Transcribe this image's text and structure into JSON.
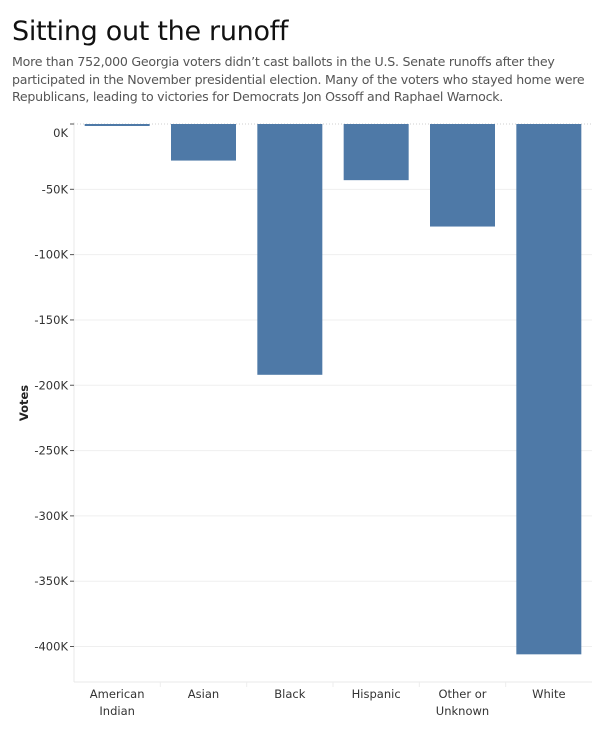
{
  "header": {
    "title": "Sitting out the runoff",
    "subtitle": "More than 752,000 Georgia voters didn’t cast ballots in the U.S. Senate runoffs after they participated in the November presidential election. Many of the voters who stayed home were Republicans, leading to victories for Democrats Jon Ossoff and Raphael Warnock."
  },
  "chart_data": {
    "type": "bar",
    "title": "Sitting out the runoff",
    "xlabel": "",
    "ylabel": "Votes",
    "categories": [
      [
        "American",
        "Indian"
      ],
      [
        "Asian"
      ],
      [
        "Black"
      ],
      [
        "Hispanic"
      ],
      [
        "Other or",
        "Unknown"
      ],
      [
        "White"
      ]
    ],
    "category_names": [
      "American Indian",
      "Asian",
      "Black",
      "Hispanic",
      "Other or Unknown",
      "White"
    ],
    "values": [
      -1500,
      -28000,
      -192000,
      -43000,
      -78500,
      -406000
    ],
    "ylim": [
      -430000,
      0
    ],
    "yticks": [
      0,
      -50000,
      -100000,
      -150000,
      -200000,
      -250000,
      -300000,
      -350000,
      -400000
    ],
    "ytick_labels": [
      "0K",
      "-50K",
      "-100K",
      "-150K",
      "-200K",
      "-250K",
      "-300K",
      "-350K",
      "-400K"
    ],
    "grid": true,
    "bar_color": "#4e79a7",
    "grid_color": "#efefef"
  }
}
